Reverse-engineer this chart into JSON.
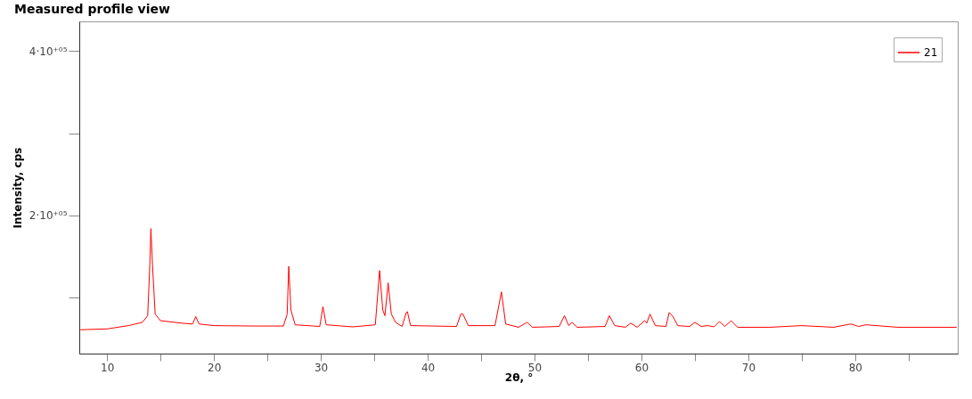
{
  "chart_data": {
    "type": "line",
    "title": "Measured profile view",
    "xlabel": "2θ, °",
    "ylabel": "Intensity, cps",
    "xlim": [
      7.4,
      89.6
    ],
    "xticks": [
      10,
      {
        "value": 15,
        "label": null
      },
      20,
      {
        "value": 25,
        "label": null
      },
      30,
      {
        "value": 35,
        "label": null
      },
      40,
      {
        "value": 45,
        "label": null
      },
      50,
      {
        "value": 55,
        "label": null
      },
      60,
      {
        "value": 65,
        "label": null
      },
      70,
      {
        "value": 75,
        "label": null
      },
      80,
      {
        "value": 85,
        "label": null
      }
    ],
    "ylim": [
      32000,
      436000
    ],
    "yticks": [
      {
        "value": 100000,
        "label": null
      },
      {
        "value": 200000,
        "label": "2·10⁺⁰⁵"
      },
      {
        "value": 300000,
        "label": null
      },
      {
        "value": 400000,
        "label": "4·10⁺⁰⁵"
      }
    ],
    "grid": false,
    "legend": "top right",
    "marker": "none",
    "line_style": "solid",
    "series": [
      {
        "name": "21",
        "color": "#ff0000",
        "x": [
          7.5,
          10,
          12,
          13.3,
          13.8,
          14.0,
          14.1,
          14.25,
          14.5,
          15,
          17,
          18.0,
          18.3,
          18.6,
          20,
          24,
          26.5,
          26.85,
          27.0,
          27.2,
          27.6,
          29.9,
          30.2,
          30.5,
          33,
          35.1,
          35.5,
          35.8,
          36.0,
          36.3,
          36.6,
          37.0,
          37.6,
          38.0,
          38.1,
          38.4,
          42.7,
          43.1,
          43.3,
          43.8,
          46.3,
          46.9,
          47.3,
          48.5,
          49.3,
          49.8,
          52.3,
          52.8,
          53.2,
          53.5,
          54,
          56.6,
          57.0,
          57.5,
          58.5,
          59.0,
          59.6,
          60.3,
          60.5,
          60.8,
          61.3,
          62.3,
          62.6,
          62.9,
          63.4,
          64.5,
          65.0,
          65.6,
          66.2,
          66.8,
          67.3,
          67.8,
          68.4,
          69,
          72,
          75,
          78,
          79.6,
          80.3,
          81,
          84,
          89.5
        ],
        "values": [
          61000,
          62000,
          66000,
          70000,
          78000,
          140000,
          184000,
          140000,
          80000,
          72000,
          69000,
          68000,
          77000,
          68000,
          66000,
          65500,
          65500,
          80000,
          138000,
          85000,
          67000,
          65000,
          89000,
          67000,
          64500,
          67000,
          133000,
          85000,
          78000,
          118000,
          80000,
          70000,
          65000,
          82000,
          83000,
          66000,
          65000,
          80000,
          80000,
          66000,
          66000,
          107000,
          68000,
          64000,
          70000,
          64000,
          65000,
          78000,
          66000,
          70000,
          64000,
          65000,
          78000,
          66000,
          64000,
          69000,
          64000,
          72000,
          69000,
          80000,
          66000,
          65000,
          82000,
          78000,
          66000,
          65000,
          70000,
          65000,
          66000,
          64500,
          71000,
          65000,
          72000,
          64000,
          64000,
          66000,
          64000,
          68000,
          65000,
          67000,
          64000,
          64000
        ]
      }
    ]
  }
}
